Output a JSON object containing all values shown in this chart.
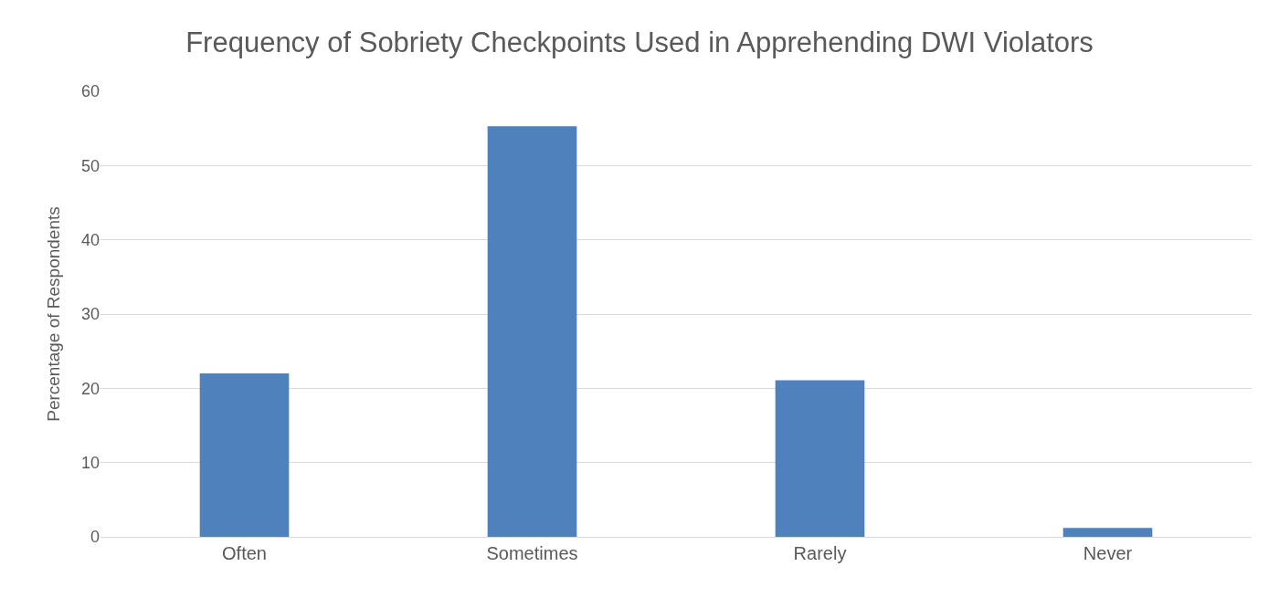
{
  "chart_data": {
    "type": "bar",
    "title": "Frequency of Sobriety Checkpoints Used in Apprehending DWI Violators",
    "ylabel": "Percentage of Respondents",
    "categories": [
      "Often",
      "Sometimes",
      "Rarely",
      "Never"
    ],
    "values": [
      22.0,
      55.3,
      21.1,
      1.2
    ],
    "color": "#4f81bd",
    "ylim": [
      0,
      60
    ],
    "yticks": [
      0,
      10,
      20,
      30,
      40,
      50,
      60
    ],
    "grid": "y"
  }
}
